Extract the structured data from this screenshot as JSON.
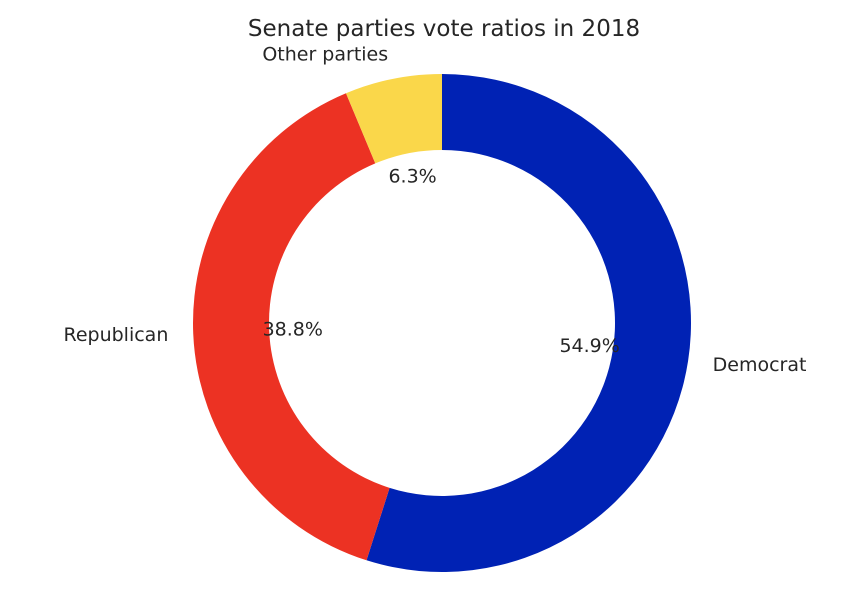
{
  "chart_data": {
    "type": "pie",
    "style": "donut",
    "title": "Senate parties vote ratios in 2018",
    "start_angle_deg": 90,
    "direction": "clockwise",
    "legend": "none",
    "slices": [
      {
        "label": "Democrat",
        "value": 54.9,
        "pct_label": "54.9%",
        "color": "#0022b4"
      },
      {
        "label": "Republican",
        "value": 38.8,
        "pct_label": "38.8%",
        "color": "#ec3223"
      },
      {
        "label": "Other parties",
        "value": 6.3,
        "pct_label": "6.3%",
        "color": "#fad74a"
      }
    ]
  }
}
